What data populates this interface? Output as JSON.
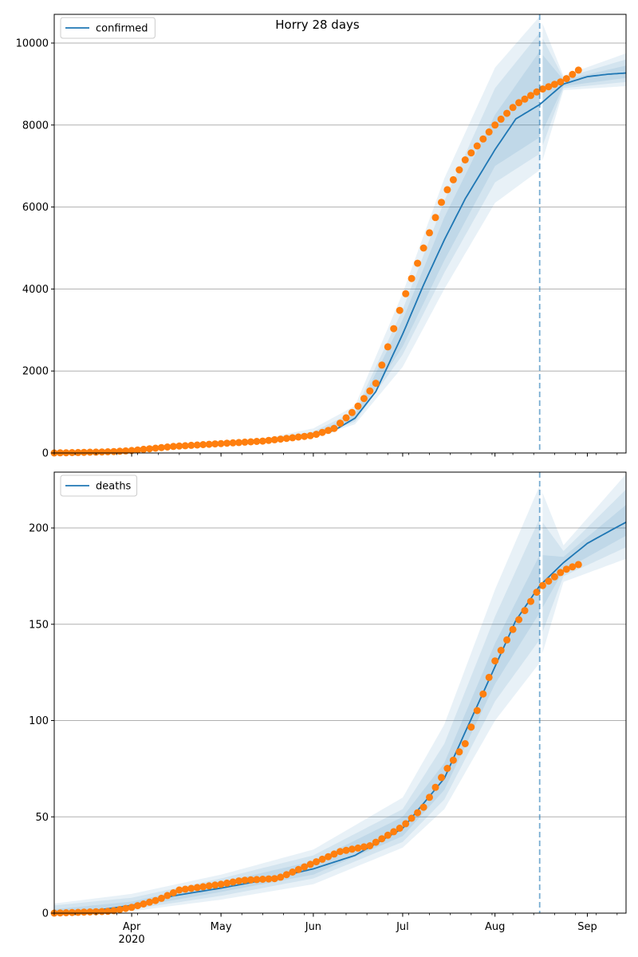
{
  "chart_data": [
    {
      "type": "line",
      "title": "Horry 28 days",
      "legend": {
        "position": "top-left",
        "entries": [
          "confirmed"
        ]
      },
      "grid": "y",
      "x_range": [
        "2020-03-06",
        "2020-09-14"
      ],
      "ylim": [
        0,
        10700
      ],
      "y_ticks": [
        0,
        2000,
        4000,
        6000,
        8000,
        10000
      ],
      "vline_date": "2020-08-16",
      "model": {
        "name": "confirmed",
        "dates": [
          "2020-03-06",
          "2020-03-20",
          "2020-04-01",
          "2020-04-15",
          "2020-05-01",
          "2020-05-15",
          "2020-06-01",
          "2020-06-08",
          "2020-06-15",
          "2020-06-22",
          "2020-07-01",
          "2020-07-08",
          "2020-07-15",
          "2020-07-22",
          "2020-08-01",
          "2020-08-08",
          "2020-08-16",
          "2020-08-24",
          "2020-09-01",
          "2020-09-08",
          "2020-09-14"
        ],
        "values": [
          0,
          10,
          40,
          150,
          230,
          290,
          420,
          550,
          850,
          1500,
          2900,
          4100,
          5200,
          6200,
          7400,
          8150,
          8500,
          9000,
          9180,
          9240,
          9270
        ]
      },
      "bands": {
        "dates": [
          "2020-03-06",
          "2020-04-15",
          "2020-05-15",
          "2020-06-01",
          "2020-06-15",
          "2020-07-01",
          "2020-07-15",
          "2020-08-01",
          "2020-08-16",
          "2020-08-24",
          "2020-09-14"
        ],
        "levels": [
          {
            "lower": [
              0,
              120,
              250,
              380,
              700,
              2100,
              4000,
              6100,
              6900,
              8850,
              8950
            ],
            "upper": [
              0,
              180,
              340,
              600,
              1150,
              3900,
              6700,
              9400,
              10650,
              9200,
              9750
            ]
          },
          {
            "lower": [
              0,
              130,
              265,
              395,
              760,
              2400,
              4400,
              6600,
              7300,
              8900,
              9050
            ],
            "upper": [
              0,
              172,
              320,
              520,
              1020,
              3500,
              6150,
              8900,
              10250,
              9150,
              9600
            ]
          },
          {
            "lower": [
              0,
              140,
              275,
              405,
              800,
              2600,
              4700,
              7000,
              7700,
              8950,
              9150
            ],
            "upper": [
              0,
              162,
              305,
              470,
              940,
              3250,
              5750,
              8250,
              9800,
              9100,
              9450
            ]
          }
        ]
      },
      "observed": {
        "dates": [
          "2020-03-06",
          "2020-03-25",
          "2020-04-01",
          "2020-04-08",
          "2020-04-15",
          "2020-05-01",
          "2020-05-15",
          "2020-06-01",
          "2020-06-08",
          "2020-06-15",
          "2020-06-22",
          "2020-07-01",
          "2020-07-08",
          "2020-07-15",
          "2020-07-22",
          "2020-08-01",
          "2020-08-08",
          "2020-08-16",
          "2020-08-24",
          "2020-08-29"
        ],
        "values": [
          0,
          30,
          60,
          110,
          160,
          230,
          290,
          430,
          600,
          1050,
          1700,
          3700,
          5000,
          6300,
          7150,
          8000,
          8500,
          8850,
          9080,
          9340
        ]
      }
    },
    {
      "type": "line",
      "legend": {
        "position": "top-left",
        "entries": [
          "deaths"
        ]
      },
      "grid": "y",
      "x_range": [
        "2020-03-06",
        "2020-09-14"
      ],
      "ylim": [
        0,
        229
      ],
      "y_ticks": [
        0,
        50,
        100,
        150,
        200
      ],
      "x_ticks": [
        {
          "date": "2020-04-01",
          "label": "Apr",
          "year": "2020"
        },
        {
          "date": "2020-05-01",
          "label": "May"
        },
        {
          "date": "2020-06-01",
          "label": "Jun"
        },
        {
          "date": "2020-07-01",
          "label": "Jul"
        },
        {
          "date": "2020-08-01",
          "label": "Aug"
        },
        {
          "date": "2020-09-01",
          "label": "Sep"
        }
      ],
      "vline_date": "2020-08-16",
      "model": {
        "name": "deaths",
        "dates": [
          "2020-03-06",
          "2020-03-20",
          "2020-04-01",
          "2020-04-15",
          "2020-05-01",
          "2020-05-15",
          "2020-06-01",
          "2020-06-15",
          "2020-07-01",
          "2020-07-15",
          "2020-07-22",
          "2020-08-01",
          "2020-08-08",
          "2020-08-16",
          "2020-08-24",
          "2020-09-01",
          "2020-09-08",
          "2020-09-14"
        ],
        "values": [
          0,
          1.5,
          4,
          9,
          13,
          17,
          23,
          30,
          44,
          70,
          94,
          128,
          152,
          170,
          182,
          192,
          198,
          203
        ]
      },
      "bands": {
        "dates": [
          "2020-03-06",
          "2020-04-01",
          "2020-05-01",
          "2020-06-01",
          "2020-07-01",
          "2020-07-15",
          "2020-08-01",
          "2020-08-16",
          "2020-08-24",
          "2020-09-14"
        ],
        "levels": [
          {
            "lower": [
              0,
              1,
              7,
              15,
              34,
              54,
              100,
              130,
              172,
              184
            ],
            "upper": [
              5,
              10,
              20,
              33,
              60,
              98,
              168,
              222,
              191,
              228
            ]
          },
          {
            "lower": [
              0,
              2,
              9,
              18,
              37,
              59,
              110,
              142,
              175,
              190
            ],
            "upper": [
              4,
              8,
              18,
              30,
              54,
              88,
              154,
              205,
              188,
              220
            ]
          },
          {
            "lower": [
              0,
              3,
              11,
              20,
              40,
              64,
              119,
              156,
              178,
              196
            ],
            "upper": [
              2,
              6,
              16,
              27,
              50,
              78,
              140,
              186,
              185,
              212
            ]
          }
        ]
      },
      "observed": {
        "dates": [
          "2020-03-06",
          "2020-03-25",
          "2020-04-01",
          "2020-04-10",
          "2020-04-17",
          "2020-05-01",
          "2020-05-08",
          "2020-05-20",
          "2020-06-01",
          "2020-06-10",
          "2020-06-20",
          "2020-07-01",
          "2020-07-08",
          "2020-07-15",
          "2020-07-22",
          "2020-08-01",
          "2020-08-08",
          "2020-08-16",
          "2020-08-24",
          "2020-08-29"
        ],
        "values": [
          0,
          1,
          3,
          7,
          12,
          15,
          17,
          18,
          26,
          32,
          35,
          45,
          55,
          73,
          88,
          131,
          150,
          169,
          178,
          181
        ]
      }
    }
  ]
}
